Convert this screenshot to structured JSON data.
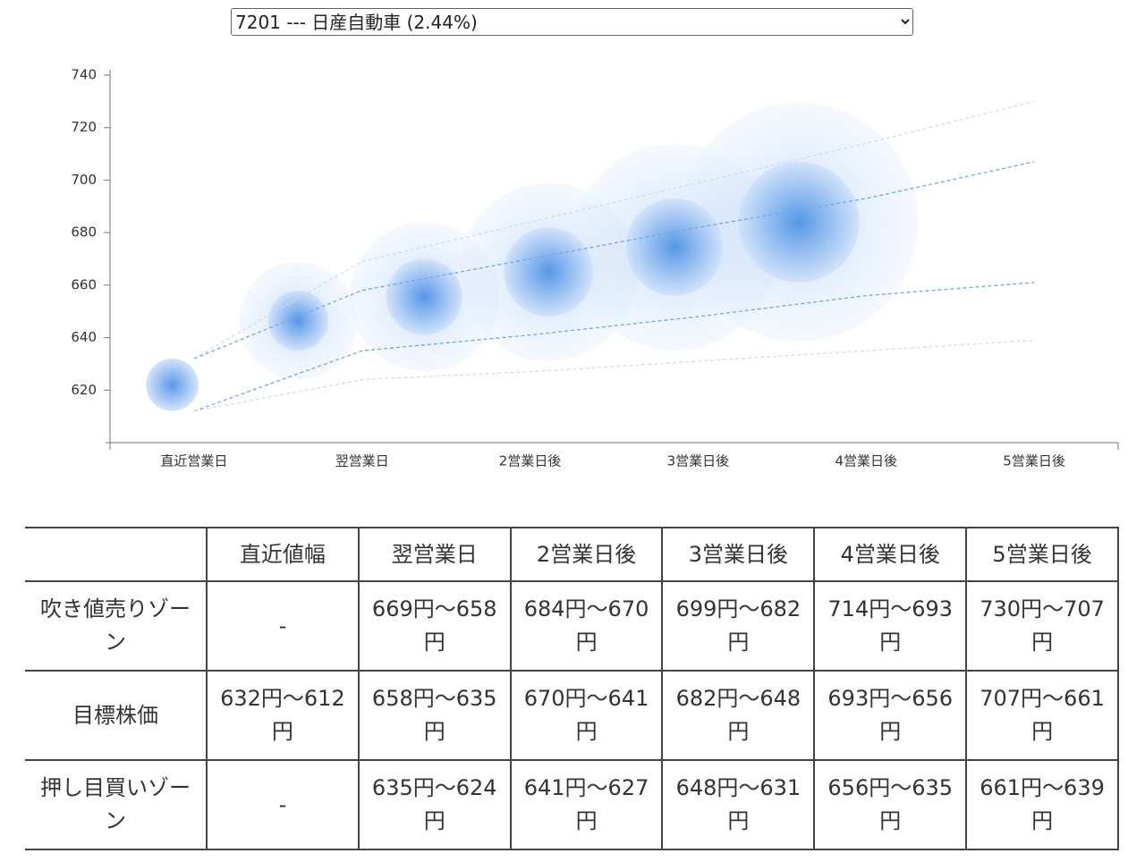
{
  "select": {
    "selected": "7201 --- 日産自動車 (2.44%)"
  },
  "chart_data": {
    "type": "bubble",
    "categories": [
      "直近営業日",
      "翌営業日",
      "2営業日後",
      "3営業日後",
      "4営業日後",
      "5営業日後"
    ],
    "ylim": [
      600,
      740
    ],
    "yticks": [
      620,
      640,
      660,
      680,
      700,
      720,
      740
    ],
    "series": [
      {
        "color": "#cfdcee",
        "values": [
          632,
          669,
          684,
          699,
          714,
          730
        ]
      },
      {
        "color": "#6fa6e4",
        "values": [
          632,
          658,
          670,
          682,
          693,
          707
        ]
      },
      {
        "color": "#6fa6e4",
        "values": [
          612,
          635,
          641,
          648,
          656,
          661
        ]
      },
      {
        "color": "#cfdcee",
        "values": [
          612,
          624,
          627,
          631,
          635,
          639
        ]
      }
    ],
    "bubbles": {
      "color": "#4f93e6",
      "x": [
        -0.13,
        0.62,
        1.37,
        2.11,
        2.86,
        3.6
      ],
      "values": [
        622,
        646.5,
        655.5,
        665,
        674.5,
        684
      ],
      "sizes": [
        10,
        11.5,
        14.5,
        17,
        18.5,
        23
      ],
      "halo_sizes": [
        null,
        22.5,
        28.5,
        34,
        39.5,
        45.5
      ]
    }
  },
  "table": {
    "header": [
      "直近値幅",
      "翌営業日",
      "2営業日後",
      "3営業日後",
      "4営業日後",
      "5営業日後"
    ],
    "rows": [
      {
        "label": "吹き値売りゾーン",
        "cells": [
          "-",
          "669円〜658円",
          "684円〜670円",
          "699円〜682円",
          "714円〜693円",
          "730円〜707円"
        ]
      },
      {
        "label": "目標株価",
        "cells": [
          "632円〜612円",
          "658円〜635円",
          "670円〜641円",
          "682円〜648円",
          "693円〜656円",
          "707円〜661円"
        ]
      },
      {
        "label": "押し目買いゾーン",
        "cells": [
          "-",
          "635円〜624円",
          "641円〜627円",
          "648円〜631円",
          "656円〜635円",
          "661円〜639円"
        ]
      }
    ]
  }
}
